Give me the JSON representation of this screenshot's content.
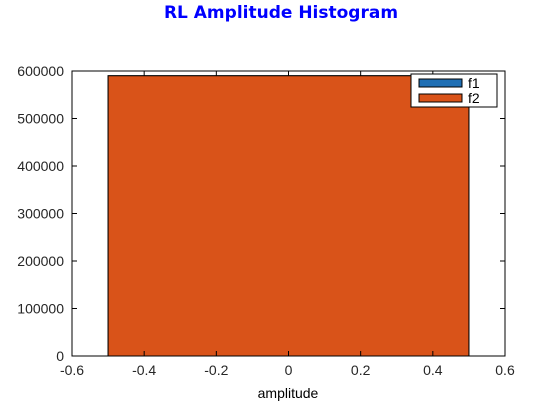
{
  "chart_data": {
    "type": "bar",
    "title": "RL Amplitude Histogram",
    "title_color": "#0000ff",
    "xlabel": "amplitude",
    "ylabel": "",
    "xlim": [
      -0.6,
      0.6
    ],
    "ylim": [
      0,
      600000
    ],
    "xticks": [
      "-0.6",
      "-0.4",
      "-0.2",
      "0",
      "0.2",
      "0.4",
      "0.6"
    ],
    "yticks": [
      "0",
      "100000",
      "200000",
      "300000",
      "400000",
      "500000",
      "600000"
    ],
    "grid": false,
    "legend_position": "top-right",
    "series": [
      {
        "name": "f1",
        "color": "#1f6fb4",
        "bins": [
          {
            "x0": -0.5,
            "x1": 0.5,
            "value": 590000
          }
        ]
      },
      {
        "name": "f2",
        "color": "#d95319",
        "bins": [
          {
            "x0": -0.5,
            "x1": 0.5,
            "value": 590000
          }
        ]
      }
    ]
  }
}
